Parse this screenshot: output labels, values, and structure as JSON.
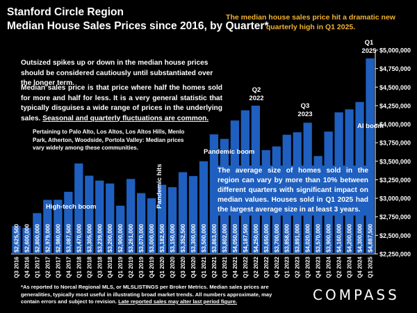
{
  "header": {
    "title_line1": "Stanford Circle Region",
    "title_line2": "Median House Sales Prices since 2016, by Quarter*",
    "callout": "The median house sales price hit a dramatic new quarterly high in Q1 2025."
  },
  "notes": {
    "warning": "Outsized spikes up or down in the median house prices should be considered cautiously until substantiated over the longer term.",
    "median_part1": "Median sales price is that price where half the homes sold for more and half for less. It is a very general statistic that typically disguises a wide range of prices in the underlying sales. ",
    "median_part2": "Seasonal and quarterly fluctuations are common.",
    "towns": "Pertaining to Palo Alto, Los Altos, Los Altos Hills, Menlo Park, Atherton, Woodside, Portola Valley: Median prices vary widely among these communities.",
    "size": "The average size of homes sold in the region can vary by more than 10% between different quarters with significant impact on median values. Houses sold in Q1 2025 had the largest average size in at least 3 years."
  },
  "annotations": {
    "hightech": "High-tech boom",
    "pandemic_hits": "Pandemic hits",
    "pandemic_boom": "Pandemic boom",
    "ai_boom": "AI boom",
    "q2": "Q2",
    "q2_year": "2022",
    "q3": "Q3",
    "q3_year": "2023",
    "q1": "Q1",
    "q1_year": "2025"
  },
  "footer": {
    "footnote_part1": "*As reported to Norcal Regional MLS, or MLSLISTINGS per Broker Metrics. Median sales prices are generalities, typically most useful in illustrating broad market trends. All numbers approximate, may contain errors and subject to revision. ",
    "footnote_part2": "Late reported sales may alter last period figure.",
    "logo": "COMPASS"
  },
  "colors": {
    "background": "#000000",
    "bar": "#1f5fbf",
    "callout": "#f2b233",
    "text": "#ffffff"
  },
  "chart_data": {
    "type": "bar",
    "categories": [
      "Q3 2016",
      "Q4 2016",
      "Q1 2017",
      "Q2 2017",
      "Q3 2017",
      "Q4 2017",
      "Q1 2018",
      "Q2 2018",
      "Q3 2018",
      "Q4 2018",
      "Q1 2019",
      "Q2 2019",
      "Q3 2019",
      "Q4 2019",
      "Q1 2020",
      "Q2 2020",
      "Q3 2020",
      "Q4 2020",
      "Q1 2021",
      "Q2 2021",
      "Q3 2021",
      "Q4 2021",
      "Q1 2022",
      "Q2 2022",
      "Q3 2022",
      "Q4 2022",
      "Q1 2023",
      "Q2 2023",
      "Q3 2023",
      "Q4 2023",
      "Q1 2024",
      "Q2 2024",
      "Q3 2024",
      "Q4 2024",
      "Q1 2025"
    ],
    "values": [
      2625500,
      2600000,
      2800000,
      2979000,
      2980000,
      3087500,
      3470000,
      3305000,
      3239000,
      3200000,
      2900000,
      3261000,
      3070000,
      3000000,
      3182500,
      3150000,
      3352500,
      3300000,
      3500000,
      3863000,
      3802000,
      4050000,
      4187500,
      4250000,
      3650000,
      3700000,
      3858000,
      3891000,
      4020000,
      3570000,
      3900000,
      4160000,
      4200000,
      4300000,
      4887500
    ],
    "labels": [
      "$2,625,500",
      "$2,600,000",
      "$2,800,000",
      "$2,979,000",
      "$2,980,000",
      "$3,087,500",
      "$3,470,000",
      "$3,305,000",
      "$3,239,000",
      "$3,200,000",
      "$2,900,000",
      "$3,261,000",
      "$3,070,000",
      "$3,000,000",
      "$3,182,500",
      "$3,150,000",
      "$3,352,500",
      "$3,300,000",
      "$3,500,000",
      "$3,863,000",
      "$3,802,000",
      "$4,050,000",
      "$4,187,500",
      "$4,250,000",
      "$3,650,000",
      "$3,700,000",
      "$3,858,000",
      "$3,891,000",
      "$4,020,000",
      "$3,570,000",
      "$3,900,000",
      "$4,160,000",
      "$4,200,000",
      "$4,300,000",
      "$4,887,500"
    ],
    "ylim": [
      2250000,
      5000000
    ],
    "yticks": [
      2250000,
      2500000,
      2750000,
      3000000,
      3250000,
      3500000,
      3750000,
      4000000,
      4250000,
      4500000,
      4750000,
      5000000
    ],
    "ytick_labels": [
      "$2,250,000",
      "$2,500,000",
      "$2,750,000",
      "$3,000,000",
      "$3,250,000",
      "$3,500,000",
      "$3,750,000",
      "$4,000,000",
      "$4,250,000",
      "$4,500,000",
      "$4,750,000",
      "$5,000,000"
    ],
    "xlabel": "",
    "ylabel": "",
    "grid": false,
    "axis_side": "right"
  }
}
